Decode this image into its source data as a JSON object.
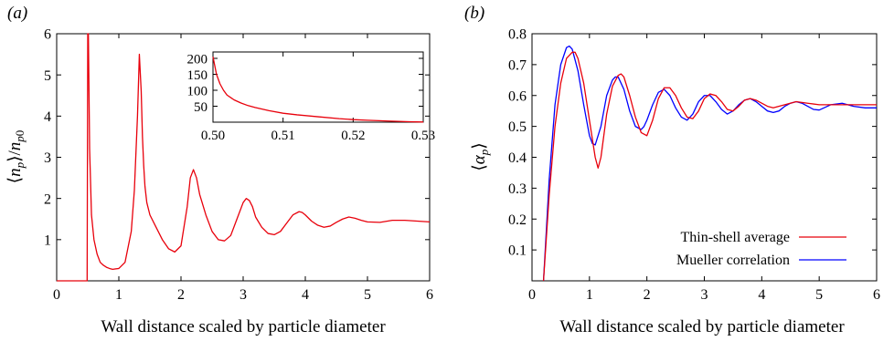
{
  "chart_data": [
    {
      "panel_label": "(a)",
      "type": "line",
      "xlabel": "Wall distance scaled by particle diameter",
      "ylabel": "⟨n_p⟩/n_p0",
      "xlim": [
        0,
        6
      ],
      "ylim": [
        0,
        6
      ],
      "xticks": [
        0,
        1,
        2,
        3,
        4,
        5,
        6
      ],
      "yticks": [
        1,
        2,
        3,
        4,
        5,
        6
      ],
      "grid": false,
      "series": [
        {
          "color": "#e8000b",
          "x": [
            0,
            0.49,
            0.5,
            0.505,
            0.51,
            0.53,
            0.56,
            0.6,
            0.65,
            0.7,
            0.75,
            0.8,
            0.85,
            0.9,
            1.0,
            1.1,
            1.2,
            1.25,
            1.3,
            1.33,
            1.36,
            1.38,
            1.4,
            1.42,
            1.45,
            1.5,
            1.6,
            1.7,
            1.8,
            1.9,
            2.0,
            2.1,
            2.15,
            2.2,
            2.25,
            2.3,
            2.4,
            2.5,
            2.6,
            2.7,
            2.8,
            2.9,
            3.0,
            3.05,
            3.1,
            3.15,
            3.2,
            3.3,
            3.4,
            3.5,
            3.6,
            3.7,
            3.8,
            3.9,
            3.95,
            4.0,
            4.1,
            4.2,
            4.3,
            4.4,
            4.5,
            4.6,
            4.7,
            4.8,
            4.9,
            5.0,
            5.2,
            5.4,
            5.6,
            5.8,
            6.0
          ],
          "y": [
            0,
            0,
            6,
            6,
            6,
            3.2,
            1.6,
            1.0,
            0.65,
            0.45,
            0.38,
            0.33,
            0.3,
            0.28,
            0.3,
            0.45,
            1.2,
            2.2,
            4.0,
            5.5,
            4.6,
            3.5,
            2.8,
            2.3,
            1.9,
            1.6,
            1.3,
            1.0,
            0.78,
            0.7,
            0.85,
            1.8,
            2.5,
            2.7,
            2.5,
            2.1,
            1.6,
            1.2,
            1.0,
            0.97,
            1.1,
            1.5,
            1.9,
            2.0,
            1.95,
            1.8,
            1.55,
            1.3,
            1.15,
            1.12,
            1.2,
            1.4,
            1.6,
            1.68,
            1.66,
            1.6,
            1.45,
            1.35,
            1.3,
            1.33,
            1.42,
            1.5,
            1.55,
            1.52,
            1.47,
            1.43,
            1.42,
            1.47,
            1.47,
            1.45,
            1.43
          ]
        }
      ],
      "inset": {
        "type": "line",
        "xlim": [
          0.5,
          0.53
        ],
        "ylim": [
          0,
          220
        ],
        "xticks": [
          0.5,
          0.51,
          0.52,
          0.53
        ],
        "xtick_labels": [
          "0.50",
          "0.51",
          "0.52",
          "0.53"
        ],
        "yticks": [
          50,
          100,
          150,
          200
        ],
        "x": [
          0.5,
          0.5005,
          0.501,
          0.5015,
          0.502,
          0.503,
          0.504,
          0.505,
          0.506,
          0.508,
          0.51,
          0.512,
          0.515,
          0.518,
          0.52,
          0.522,
          0.525,
          0.528,
          0.53
        ],
        "y": [
          205,
          150,
          120,
          100,
          85,
          70,
          60,
          52,
          46,
          36,
          28,
          23,
          17,
          11,
          8,
          6,
          3.5,
          1.5,
          0.5
        ],
        "color": "#e8000b"
      }
    },
    {
      "panel_label": "(b)",
      "type": "line",
      "xlabel": "Wall distance scaled by particle diameter",
      "ylabel": "⟨α_p⟩",
      "xlim": [
        0,
        6
      ],
      "ylim": [
        0,
        0.8
      ],
      "xticks": [
        0,
        1,
        2,
        3,
        4,
        5,
        6
      ],
      "yticks": [
        0.1,
        0.2,
        0.3,
        0.4,
        0.5,
        0.6,
        0.7,
        0.8
      ],
      "grid": false,
      "legend_position": "bottom-right",
      "series": [
        {
          "name": "Thin-shell average",
          "color": "#e8000b",
          "x": [
            0.2,
            0.3,
            0.4,
            0.5,
            0.6,
            0.7,
            0.75,
            0.8,
            0.9,
            1.0,
            1.1,
            1.15,
            1.2,
            1.3,
            1.4,
            1.5,
            1.55,
            1.6,
            1.7,
            1.8,
            1.9,
            2.0,
            2.1,
            2.2,
            2.3,
            2.4,
            2.5,
            2.6,
            2.7,
            2.8,
            2.9,
            3.0,
            3.1,
            3.2,
            3.3,
            3.4,
            3.5,
            3.6,
            3.7,
            3.8,
            3.9,
            4.0,
            4.1,
            4.2,
            4.4,
            4.6,
            4.8,
            5.0,
            5.2,
            5.4,
            5.6,
            5.8,
            6.0
          ],
          "y": [
            0,
            0.28,
            0.5,
            0.64,
            0.72,
            0.74,
            0.74,
            0.72,
            0.64,
            0.52,
            0.4,
            0.365,
            0.4,
            0.54,
            0.63,
            0.665,
            0.67,
            0.66,
            0.6,
            0.53,
            0.48,
            0.47,
            0.52,
            0.59,
            0.625,
            0.625,
            0.6,
            0.56,
            0.53,
            0.525,
            0.55,
            0.59,
            0.605,
            0.6,
            0.58,
            0.555,
            0.55,
            0.565,
            0.585,
            0.59,
            0.585,
            0.575,
            0.565,
            0.56,
            0.57,
            0.58,
            0.575,
            0.57,
            0.57,
            0.57,
            0.57,
            0.57,
            0.57
          ]
        },
        {
          "name": "Mueller correlation",
          "color": "#0000ff",
          "x": [
            0.2,
            0.3,
            0.4,
            0.5,
            0.6,
            0.65,
            0.7,
            0.8,
            0.9,
            1.0,
            1.05,
            1.1,
            1.2,
            1.3,
            1.4,
            1.45,
            1.5,
            1.6,
            1.7,
            1.8,
            1.9,
            1.95,
            2.0,
            2.1,
            2.2,
            2.3,
            2.4,
            2.5,
            2.6,
            2.7,
            2.8,
            2.9,
            3.0,
            3.1,
            3.2,
            3.3,
            3.4,
            3.5,
            3.6,
            3.7,
            3.8,
            3.9,
            4.0,
            4.1,
            4.2,
            4.3,
            4.4,
            4.5,
            4.6,
            4.7,
            4.8,
            4.9,
            5.0,
            5.2,
            5.4,
            5.6,
            5.8,
            6.0
          ],
          "y": [
            0,
            0.33,
            0.57,
            0.7,
            0.755,
            0.76,
            0.75,
            0.68,
            0.57,
            0.47,
            0.445,
            0.44,
            0.5,
            0.6,
            0.65,
            0.66,
            0.66,
            0.62,
            0.55,
            0.5,
            0.49,
            0.5,
            0.52,
            0.57,
            0.61,
            0.62,
            0.6,
            0.56,
            0.53,
            0.52,
            0.54,
            0.58,
            0.6,
            0.6,
            0.58,
            0.555,
            0.54,
            0.55,
            0.57,
            0.585,
            0.59,
            0.58,
            0.565,
            0.55,
            0.545,
            0.55,
            0.565,
            0.575,
            0.58,
            0.575,
            0.565,
            0.555,
            0.553,
            0.57,
            0.575,
            0.565,
            0.56,
            0.56
          ]
        }
      ]
    }
  ]
}
